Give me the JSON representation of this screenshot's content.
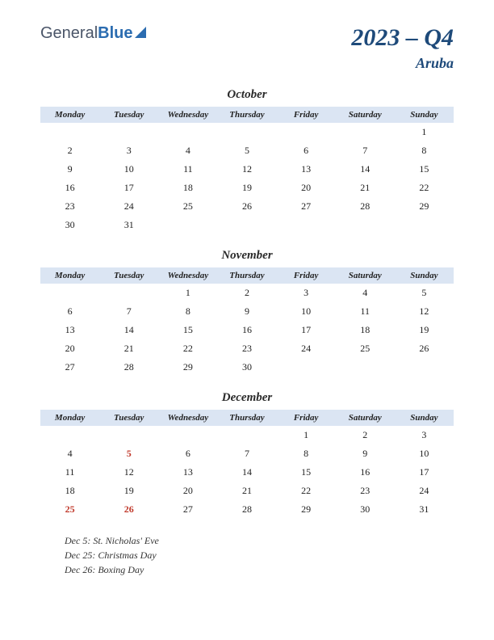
{
  "logo": {
    "part1": "General",
    "part2": "Blue"
  },
  "title": "2023 – Q4",
  "country": "Aruba",
  "day_headers": [
    "Monday",
    "Tuesday",
    "Wednesday",
    "Thursday",
    "Friday",
    "Saturday",
    "Sunday"
  ],
  "header_bg": "#dbe5f3",
  "title_color": "#1e4a7a",
  "holiday_color": "#c0392b",
  "background_color": "#ffffff",
  "months": [
    {
      "name": "October",
      "weeks": [
        [
          "",
          "",
          "",
          "",
          "",
          "",
          "1"
        ],
        [
          "2",
          "3",
          "4",
          "5",
          "6",
          "7",
          "8"
        ],
        [
          "9",
          "10",
          "11",
          "12",
          "13",
          "14",
          "15"
        ],
        [
          "16",
          "17",
          "18",
          "19",
          "20",
          "21",
          "22"
        ],
        [
          "23",
          "24",
          "25",
          "26",
          "27",
          "28",
          "29"
        ],
        [
          "30",
          "31",
          "",
          "",
          "",
          "",
          ""
        ]
      ],
      "holiday_days": []
    },
    {
      "name": "November",
      "weeks": [
        [
          "",
          "",
          "1",
          "2",
          "3",
          "4",
          "5"
        ],
        [
          "6",
          "7",
          "8",
          "9",
          "10",
          "11",
          "12"
        ],
        [
          "13",
          "14",
          "15",
          "16",
          "17",
          "18",
          "19"
        ],
        [
          "20",
          "21",
          "22",
          "23",
          "24",
          "25",
          "26"
        ],
        [
          "27",
          "28",
          "29",
          "30",
          "",
          "",
          ""
        ]
      ],
      "holiday_days": []
    },
    {
      "name": "December",
      "weeks": [
        [
          "",
          "",
          "",
          "",
          "1",
          "2",
          "3"
        ],
        [
          "4",
          "5",
          "6",
          "7",
          "8",
          "9",
          "10"
        ],
        [
          "11",
          "12",
          "13",
          "14",
          "15",
          "16",
          "17"
        ],
        [
          "18",
          "19",
          "20",
          "21",
          "22",
          "23",
          "24"
        ],
        [
          "25",
          "26",
          "27",
          "28",
          "29",
          "30",
          "31"
        ]
      ],
      "holiday_days": [
        "5",
        "25",
        "26"
      ]
    }
  ],
  "holidays": [
    "Dec 5: St. Nicholas' Eve",
    "Dec 25: Christmas Day",
    "Dec 26: Boxing Day"
  ]
}
